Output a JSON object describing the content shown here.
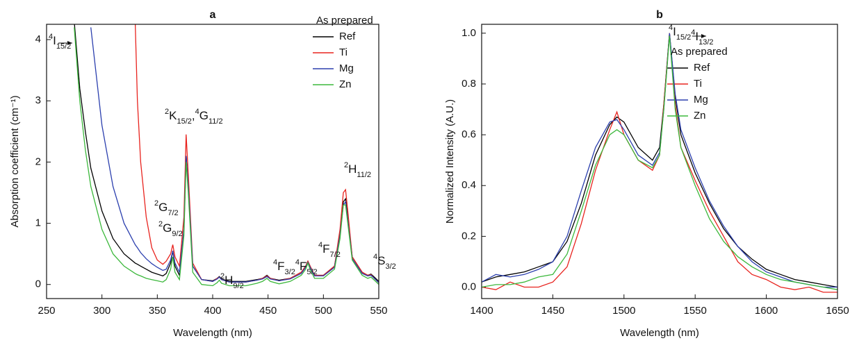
{
  "chart_data": [
    {
      "type": "line",
      "title": "a",
      "xlabel": "Wavelength (nm)",
      "ylabel": "Absorption coefficient (cm⁻¹)",
      "x": [
        275,
        280,
        285,
        290,
        300,
        310,
        320,
        330,
        332,
        335,
        340,
        345,
        350,
        355,
        358,
        362,
        364,
        366,
        370,
        374,
        376,
        378,
        382,
        390,
        400,
        404,
        406,
        408,
        415,
        430,
        440,
        445,
        449,
        452,
        460,
        470,
        480,
        484,
        486,
        488,
        492,
        500,
        510,
        515,
        518,
        520,
        522,
        526,
        535,
        540,
        543,
        546,
        550
      ],
      "series": [
        {
          "name": "Ref",
          "color": "#000000",
          "values": [
            4.3,
            3.2,
            2.5,
            1.9,
            1.2,
            0.75,
            0.5,
            0.35,
            0.33,
            0.3,
            0.25,
            0.2,
            0.17,
            0.14,
            0.18,
            0.35,
            0.55,
            0.3,
            0.15,
            0.9,
            2.1,
            1.6,
            0.3,
            0.08,
            0.06,
            0.1,
            0.13,
            0.09,
            0.05,
            0.05,
            0.08,
            0.1,
            0.15,
            0.1,
            0.07,
            0.1,
            0.2,
            0.3,
            0.38,
            0.3,
            0.15,
            0.15,
            0.3,
            0.8,
            1.35,
            1.4,
            1.1,
            0.45,
            0.2,
            0.15,
            0.17,
            0.12,
            0.05
          ]
        },
        {
          "name": "Ti",
          "color": "#e8231e",
          "values": [
            null,
            null,
            null,
            null,
            null,
            null,
            null,
            4.3,
            3.0,
            2.0,
            1.1,
            0.6,
            0.4,
            0.33,
            0.38,
            0.5,
            0.65,
            0.45,
            0.3,
            1.1,
            2.45,
            1.8,
            0.35,
            0.08,
            0.05,
            0.1,
            0.12,
            0.08,
            0.04,
            0.04,
            0.07,
            0.1,
            0.14,
            0.1,
            0.06,
            0.1,
            0.2,
            0.3,
            0.38,
            0.3,
            0.15,
            0.15,
            0.3,
            0.9,
            1.5,
            1.55,
            1.2,
            0.45,
            0.2,
            0.15,
            0.16,
            0.1,
            0.03
          ]
        },
        {
          "name": "Mg",
          "color": "#2b3fae",
          "values": [
            null,
            null,
            null,
            4.2,
            2.6,
            1.6,
            1.0,
            0.65,
            0.6,
            0.52,
            0.42,
            0.34,
            0.28,
            0.23,
            0.25,
            0.4,
            0.55,
            0.35,
            0.2,
            0.9,
            2.1,
            1.6,
            0.3,
            0.08,
            0.05,
            0.09,
            0.12,
            0.08,
            0.04,
            0.04,
            0.07,
            0.09,
            0.13,
            0.09,
            0.06,
            0.09,
            0.18,
            0.28,
            0.36,
            0.28,
            0.14,
            0.14,
            0.28,
            0.8,
            1.3,
            1.35,
            1.05,
            0.42,
            0.18,
            0.14,
            0.15,
            0.1,
            0.03
          ]
        },
        {
          "name": "Zn",
          "color": "#3cb83c",
          "values": [
            4.2,
            3.0,
            2.2,
            1.6,
            0.9,
            0.5,
            0.3,
            0.18,
            0.16,
            0.14,
            0.1,
            0.08,
            0.06,
            0.04,
            0.08,
            0.25,
            0.45,
            0.2,
            0.08,
            0.8,
            2.0,
            1.5,
            0.2,
            0.0,
            -0.02,
            0.03,
            0.07,
            0.02,
            -0.02,
            -0.02,
            0.02,
            0.05,
            0.1,
            0.05,
            0.01,
            0.05,
            0.15,
            0.25,
            0.35,
            0.25,
            0.1,
            0.1,
            0.25,
            0.75,
            1.3,
            1.3,
            1.0,
            0.4,
            0.15,
            0.1,
            0.12,
            0.07,
            0.0
          ]
        }
      ],
      "xlim": [
        250,
        550
      ],
      "xticks": [
        250,
        300,
        350,
        400,
        450,
        500,
        550
      ],
      "ylim": [
        -0.23,
        4.25
      ],
      "yticks": [
        0,
        1,
        2,
        3,
        4
      ],
      "legend_title": "As prepared",
      "legend": "upper right",
      "annotations": [
        [
          {
            "pos": "sup",
            "text": "4"
          },
          {
            "pos": "base",
            "text": "I"
          },
          {
            "pos": "sub",
            "text": "15/2"
          }
        ],
        [
          {
            "pos": "sup",
            "text": "2"
          },
          {
            "pos": "base",
            "text": "K"
          },
          {
            "pos": "sub",
            "text": "15/2"
          },
          {
            "pos": "base",
            "text": ","
          },
          {
            "pos": "sup",
            "text": "4"
          },
          {
            "pos": "base",
            "text": "G"
          },
          {
            "pos": "sub",
            "text": "11/2"
          }
        ],
        [
          {
            "pos": "sup",
            "text": "2"
          },
          {
            "pos": "base",
            "text": "G"
          },
          {
            "pos": "sub",
            "text": "7/2"
          }
        ],
        [
          {
            "pos": "sup",
            "text": "2"
          },
          {
            "pos": "base",
            "text": "G"
          },
          {
            "pos": "sub",
            "text": "9/2"
          }
        ],
        [
          {
            "pos": "sup",
            "text": "2"
          },
          {
            "pos": "base",
            "text": "H"
          },
          {
            "pos": "sub",
            "text": "9/2"
          }
        ],
        [
          {
            "pos": "sup",
            "text": "4"
          },
          {
            "pos": "base",
            "text": "F"
          },
          {
            "pos": "sub",
            "text": "3/2"
          },
          {
            "pos": "sup",
            "text": "4"
          },
          {
            "pos": "base",
            "text": "F"
          },
          {
            "pos": "sub",
            "text": "5/2"
          }
        ],
        [
          {
            "pos": "sup",
            "text": "4"
          },
          {
            "pos": "base",
            "text": "F"
          },
          {
            "pos": "sub",
            "text": "7/2"
          }
        ],
        [
          {
            "pos": "sup",
            "text": "2"
          },
          {
            "pos": "base",
            "text": "H"
          },
          {
            "pos": "sub",
            "text": "11/2"
          }
        ],
        [
          {
            "pos": "sup",
            "text": "4"
          },
          {
            "pos": "base",
            "text": "S"
          },
          {
            "pos": "sub",
            "text": "3/2"
          }
        ]
      ]
    },
    {
      "type": "line",
      "title": "b",
      "xlabel": "Wavelength (nm)",
      "ylabel": "Normalized Intensity (A.U.)",
      "x": [
        1400,
        1410,
        1420,
        1430,
        1440,
        1450,
        1460,
        1470,
        1480,
        1490,
        1495,
        1500,
        1510,
        1520,
        1525,
        1528,
        1532,
        1536,
        1540,
        1550,
        1560,
        1570,
        1580,
        1590,
        1600,
        1610,
        1620,
        1630,
        1640,
        1650
      ],
      "series": [
        {
          "name": "Ref",
          "color": "#000000",
          "values": [
            0.02,
            0.04,
            0.05,
            0.06,
            0.08,
            0.1,
            0.18,
            0.33,
            0.52,
            0.64,
            0.67,
            0.65,
            0.55,
            0.5,
            0.55,
            0.72,
            1.0,
            0.75,
            0.6,
            0.45,
            0.33,
            0.23,
            0.16,
            0.11,
            0.07,
            0.05,
            0.03,
            0.02,
            0.01,
            0.0
          ]
        },
        {
          "name": "Ti",
          "color": "#e8231e",
          "values": [
            0.0,
            -0.01,
            0.02,
            0.0,
            0.0,
            0.02,
            0.08,
            0.25,
            0.46,
            0.62,
            0.69,
            0.6,
            0.5,
            0.46,
            0.52,
            0.72,
            1.0,
            0.72,
            0.55,
            0.42,
            0.3,
            0.2,
            0.1,
            0.05,
            0.03,
            0.0,
            -0.01,
            0.0,
            -0.02,
            -0.02
          ]
        },
        {
          "name": "Mg",
          "color": "#2b3fae",
          "values": [
            0.02,
            0.05,
            0.04,
            0.05,
            0.07,
            0.1,
            0.2,
            0.38,
            0.55,
            0.65,
            0.66,
            0.62,
            0.52,
            0.48,
            0.53,
            0.7,
            1.0,
            0.76,
            0.62,
            0.47,
            0.34,
            0.24,
            0.16,
            0.1,
            0.06,
            0.04,
            0.02,
            0.01,
            0.0,
            0.0
          ]
        },
        {
          "name": "Zn",
          "color": "#3cb83c",
          "values": [
            0.0,
            0.01,
            0.01,
            0.02,
            0.04,
            0.05,
            0.13,
            0.3,
            0.48,
            0.6,
            0.62,
            0.6,
            0.5,
            0.47,
            0.52,
            0.7,
            0.99,
            0.7,
            0.55,
            0.4,
            0.27,
            0.18,
            0.12,
            0.08,
            0.05,
            0.03,
            0.02,
            0.01,
            0.0,
            -0.01
          ]
        }
      ],
      "xlim": [
        1400,
        1650
      ],
      "xticks": [
        1400,
        1450,
        1500,
        1550,
        1600,
        1650
      ],
      "ylim": [
        -0.045,
        1.035
      ],
      "yticks": [
        {
          "value": 0,
          "label": "0.0"
        },
        0.2,
        0.4,
        0.6,
        0.8,
        {
          "value": 1,
          "label": "1.0"
        }
      ],
      "legend_title": "As prepared",
      "legend": "upper right",
      "annotations": [
        [
          {
            "pos": "sup",
            "text": "4"
          },
          {
            "pos": "base",
            "text": "I"
          },
          {
            "pos": "sub",
            "text": "15/2"
          },
          {
            "pos": "gap",
            "text": ""
          },
          {
            "pos": "sup",
            "text": "4"
          },
          {
            "pos": "base",
            "text": "I"
          },
          {
            "pos": "sub",
            "text": "13/2"
          }
        ]
      ]
    }
  ]
}
